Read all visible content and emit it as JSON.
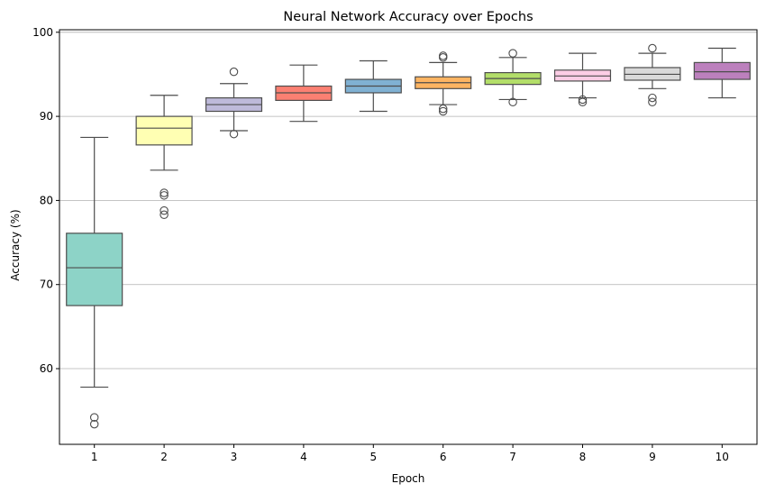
{
  "chart_data": {
    "type": "box",
    "title": "Neural Network Accuracy over Epochs",
    "xlabel": "Epoch",
    "ylabel": "Accuracy (%)",
    "categories": [
      "1",
      "2",
      "3",
      "4",
      "5",
      "6",
      "7",
      "8",
      "9",
      "10"
    ],
    "ylim": [
      51,
      100.3
    ],
    "yticks": [
      60,
      70,
      80,
      90,
      100
    ],
    "grid": "y",
    "colors": [
      "#8dd3c7",
      "#ffffb3",
      "#bebada",
      "#fb8072",
      "#80b1d3",
      "#fdb462",
      "#b3de69",
      "#fccde5",
      "#d9d9d9",
      "#bc80bd"
    ],
    "boxes": [
      {
        "category": "1",
        "whisker_low": 57.8,
        "q1": 67.5,
        "median": 72.0,
        "q3": 76.1,
        "whisker_high": 87.5,
        "outliers": [
          54.2,
          53.4
        ]
      },
      {
        "category": "2",
        "whisker_low": 83.6,
        "q1": 86.6,
        "median": 88.6,
        "q3": 90.0,
        "whisker_high": 92.5,
        "outliers": [
          80.9,
          80.6,
          78.8,
          78.3
        ]
      },
      {
        "category": "3",
        "whisker_low": 88.3,
        "q1": 90.6,
        "median": 91.4,
        "q3": 92.2,
        "whisker_high": 93.9,
        "outliers": [
          95.3,
          87.9
        ]
      },
      {
        "category": "4",
        "whisker_low": 89.4,
        "q1": 91.9,
        "median": 92.8,
        "q3": 93.6,
        "whisker_high": 96.1,
        "outliers": []
      },
      {
        "category": "5",
        "whisker_low": 90.6,
        "q1": 92.8,
        "median": 93.6,
        "q3": 94.4,
        "whisker_high": 96.6,
        "outliers": []
      },
      {
        "category": "6",
        "whisker_low": 91.4,
        "q1": 93.3,
        "median": 94.0,
        "q3": 94.7,
        "whisker_high": 96.4,
        "outliers": [
          97.2,
          97.0,
          90.9,
          90.6
        ]
      },
      {
        "category": "7",
        "whisker_low": 92.0,
        "q1": 93.8,
        "median": 94.5,
        "q3": 95.2,
        "whisker_high": 97.0,
        "outliers": [
          97.5,
          91.7
        ]
      },
      {
        "category": "8",
        "whisker_low": 92.2,
        "q1": 94.2,
        "median": 94.8,
        "q3": 95.5,
        "whisker_high": 97.5,
        "outliers": [
          92.0,
          91.7
        ]
      },
      {
        "category": "9",
        "whisker_low": 93.3,
        "q1": 94.3,
        "median": 95.0,
        "q3": 95.8,
        "whisker_high": 97.5,
        "outliers": [
          98.1,
          92.2,
          91.7
        ]
      },
      {
        "category": "10",
        "whisker_low": 92.2,
        "q1": 94.4,
        "median": 95.3,
        "q3": 96.4,
        "whisker_high": 98.1,
        "outliers": []
      }
    ]
  }
}
